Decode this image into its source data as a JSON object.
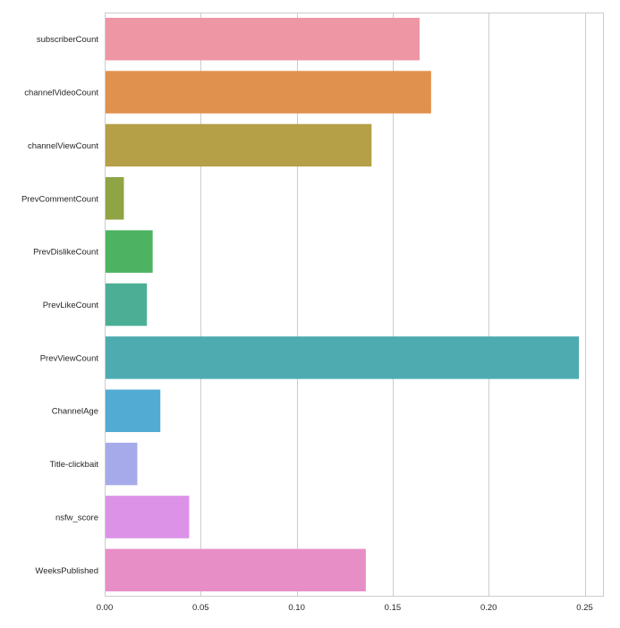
{
  "chart_data": {
    "type": "bar",
    "orientation": "horizontal",
    "title": "",
    "xlabel": "",
    "ylabel": "",
    "grid": "x",
    "xlim": [
      0,
      0.26
    ],
    "x_ticks": [
      0.0,
      0.05,
      0.1,
      0.15,
      0.2,
      0.25
    ],
    "x_tick_labels": [
      "0.00",
      "0.05",
      "0.10",
      "0.15",
      "0.20",
      "0.25"
    ],
    "categories": [
      "subscriberCount",
      "channelVideoCount",
      "channelViewCount",
      "PrevCommentCount",
      "PrevDislikeCount",
      "PrevLikeCount",
      "PrevViewCount",
      "ChannelAge",
      "Title-clickbait",
      "nsfw_score",
      "WeeksPublished"
    ],
    "values": [
      0.164,
      0.17,
      0.139,
      0.01,
      0.025,
      0.022,
      0.247,
      0.029,
      0.017,
      0.044,
      0.136
    ],
    "colors": [
      "#ee96a3",
      "#df914d",
      "#b59f47",
      "#8fa444",
      "#4db362",
      "#4bae95",
      "#4eabb0",
      "#52abd2",
      "#a7aaea",
      "#db92e7",
      "#e78ec6"
    ]
  }
}
